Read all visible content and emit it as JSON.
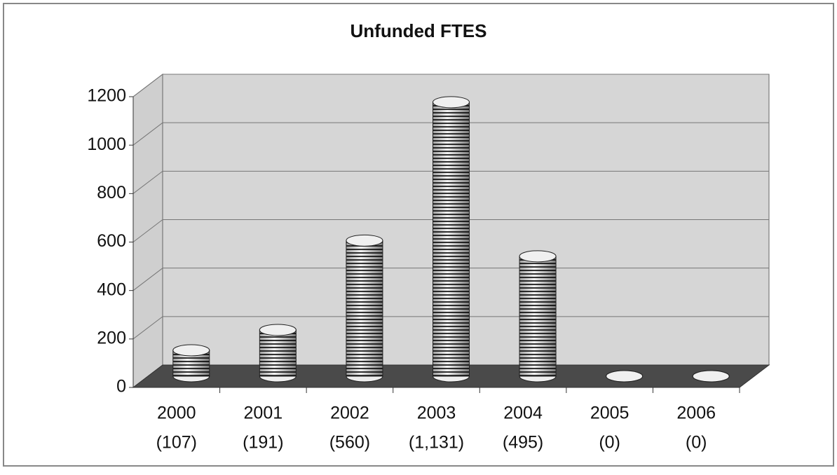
{
  "chart_data": {
    "type": "bar3d",
    "title": "Unfunded FTES",
    "categories": [
      "2000",
      "2001",
      "2002",
      "2003",
      "2004",
      "2005",
      "2006"
    ],
    "values": [
      107,
      191,
      560,
      1131,
      495,
      0,
      0
    ],
    "value_labels": [
      "(107)",
      "(191)",
      "(560)",
      "(1,131)",
      "(495)",
      "(0)",
      "(0)"
    ],
    "ylim": [
      0,
      1200
    ],
    "yticks": [
      0,
      200,
      400,
      600,
      800,
      1000,
      1200
    ],
    "grid": true,
    "color": "#d9d9d9"
  }
}
